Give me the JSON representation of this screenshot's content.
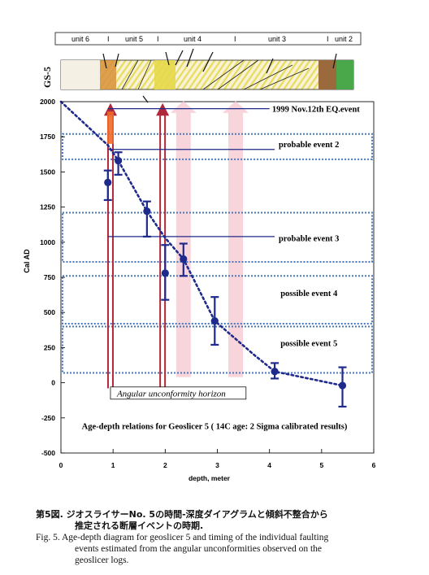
{
  "figure": {
    "core_label": "GS-5",
    "unit_bar": [
      "unit 6",
      "I",
      "unit 5",
      "I",
      "unit 4",
      "I",
      "unit 3",
      "I",
      "unit 2"
    ],
    "caption_jp_1": "第5図.  ジオスライサーNo.  5の時間-深度ダイアグラムと傾斜不整合から",
    "caption_jp_2": "推定される断層イベントの時期.",
    "caption_en_1": "Fig. 5. Age-depth diagram for geoslicer 5 and timing of the individual faulting",
    "caption_en_2": "events estimated from the angular unconformities observed on the",
    "caption_en_3": "geoslicer logs."
  },
  "colors": {
    "series": "#1e2a8c",
    "event_box": "#4a78b8",
    "arrow_red": "#b0283c",
    "arrow_orange": "#f06a2a",
    "arrow_pink": "#f6c9d2",
    "core_yellow": "#e8dc5a"
  },
  "chart_data": {
    "type": "scatter",
    "xlabel": "depth, meter",
    "ylabel": "Cal AD",
    "xlim": [
      0,
      6
    ],
    "ylim": [
      -500,
      2000
    ],
    "xticks": [
      "0",
      "1",
      "2",
      "3",
      "4",
      "5",
      "6"
    ],
    "yticks": [
      "2000",
      "1750",
      "1500",
      "1250",
      "1000",
      "750",
      "500",
      "250",
      "0",
      "-250",
      "-500"
    ],
    "grid": false,
    "series": [
      {
        "points": [
          {
            "x": 0.9,
            "y": 1425,
            "low": 1300,
            "high": 1510
          },
          {
            "x": 1.1,
            "y": 1580,
            "low": 1480,
            "high": 1640
          },
          {
            "x": 1.65,
            "y": 1220,
            "low": 1040,
            "high": 1290
          },
          {
            "x": 2.0,
            "y": 780,
            "low": 590,
            "high": 980
          },
          {
            "x": 2.35,
            "y": 880,
            "low": 760,
            "high": 990
          },
          {
            "x": 2.95,
            "y": 440,
            "low": 270,
            "high": 610
          },
          {
            "x": 4.1,
            "y": 80,
            "low": 30,
            "high": 140
          },
          {
            "x": 5.4,
            "y": -20,
            "low": -170,
            "high": 110
          }
        ]
      }
    ],
    "age_depth_curve": [
      {
        "x": 0,
        "y": 2000
      },
      {
        "x": 0.9,
        "y": 1690
      },
      {
        "x": 1.1,
        "y": 1580
      },
      {
        "x": 1.65,
        "y": 1220
      },
      {
        "x": 2.0,
        "y": 1030
      },
      {
        "x": 2.35,
        "y": 880
      },
      {
        "x": 2.95,
        "y": 440
      },
      {
        "x": 3.7,
        "y": 200
      },
      {
        "x": 4.1,
        "y": 80
      },
      {
        "x": 5.4,
        "y": -20
      }
    ],
    "events": [
      {
        "label": "1999 Nov.12th EQ.event",
        "line_y": 1950
      },
      {
        "label": "probable event 2",
        "line_y": 1660,
        "box": [
          1590,
          1770
        ]
      },
      {
        "label": "probable event 3",
        "line_y": 1040,
        "box": [
          860,
          1210
        ]
      },
      {
        "label": "possible event 4",
        "box": [
          420,
          760
        ]
      },
      {
        "label": "possible event 5",
        "box": [
          70,
          400
        ]
      }
    ],
    "unconformity_depths": [
      0.95,
      1.95
    ],
    "unconformity_label": "Angular unconformity horizon",
    "annotation": "Age-depth relations for Geoslicer 5  ( 14C age:  2 Sigma calibrated results)"
  }
}
